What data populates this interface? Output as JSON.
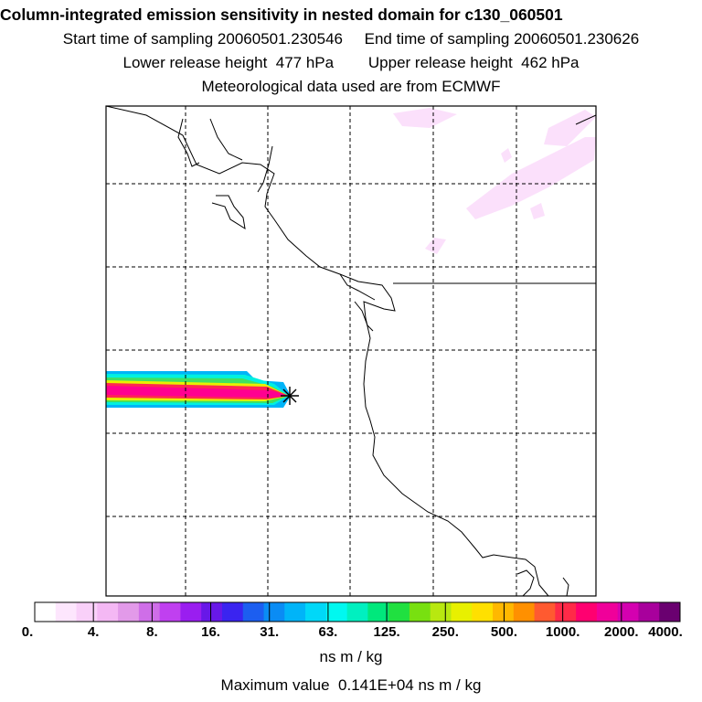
{
  "header": {
    "title": "Column-integrated emission sensitivity in nested domain for c130_060501",
    "line1": "Start time of sampling 20060501.230546     End time of sampling 20060501.230626",
    "line2": "Lower release height  477 hPa        Upper release height  462 hPa",
    "line3": "Meteorological data used are from ECMWF"
  },
  "colorbar": {
    "colors": [
      "#ffffff",
      "#fde6fd",
      "#f9d0f9",
      "#f4b8f4",
      "#e29ae9",
      "#cf6ee8",
      "#c040f0",
      "#9a1ef0",
      "#6818e8",
      "#3a24f0",
      "#1c5ef0",
      "#0a8cf4",
      "#00b4f8",
      "#00d8f8",
      "#00f8f0",
      "#00f0c0",
      "#00e87c",
      "#20e040",
      "#78e010",
      "#b8e810",
      "#e8f000",
      "#ffe000",
      "#ffb800",
      "#ff9000",
      "#ff5a30",
      "#ff2a48",
      "#ff0070",
      "#f0009a",
      "#d400b0",
      "#a8009c",
      "#6a0070"
    ],
    "tick_labels": [
      "0.",
      "4.",
      "8.",
      "16.",
      "31.",
      "63.",
      "125.",
      "250.",
      "500.",
      "1000.",
      "2000.",
      "4000."
    ],
    "units": "ns m / kg",
    "max_value": "Maximum value  0.141E+04 ns m / kg"
  },
  "map": {
    "gridlines": "dashed",
    "release_marker": "asterisk",
    "plume_colors": {
      "outer": "#00b4f8",
      "cyan": "#00f0e0",
      "green": "#40e060",
      "yellow": "#e8f000",
      "core": "#ff2850",
      "magenta": "#ff0090"
    }
  }
}
